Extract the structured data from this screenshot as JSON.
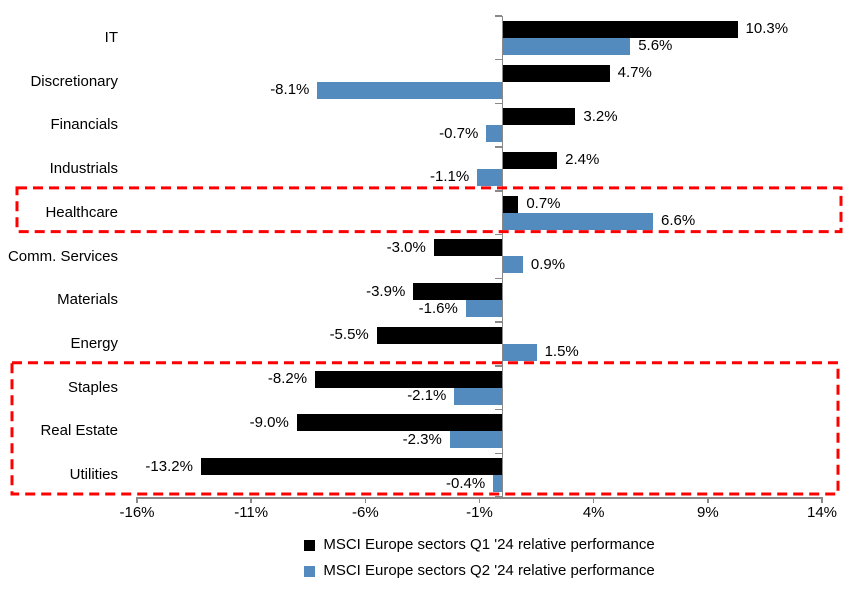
{
  "chart_data": {
    "type": "bar",
    "orientation": "horizontal",
    "title": "",
    "xlabel": "",
    "ylabel": "",
    "categories": [
      "IT",
      "Discretionary",
      "Financials",
      "Industrials",
      "Healthcare",
      "Comm. Services",
      "Materials",
      "Energy",
      "Staples",
      "Real Estate",
      "Utilities"
    ],
    "series": [
      {
        "name": "MSCI Europe sectors Q1 '24 relative performance",
        "color": "#000000",
        "values": [
          10.3,
          4.7,
          3.2,
          2.4,
          0.7,
          -3.0,
          -3.9,
          -5.5,
          -8.2,
          -9.0,
          -13.2
        ]
      },
      {
        "name": "MSCI Europe sectors Q2 '24 relative performance",
        "color": "#548BBE",
        "values": [
          5.6,
          -8.1,
          -0.7,
          -1.1,
          6.6,
          0.9,
          -1.6,
          1.5,
          -2.1,
          -2.3,
          -0.4
        ]
      }
    ],
    "data_labels": {
      "format": "one-decimal-percent",
      "q1_labels": [
        "10.3%",
        "4.7%",
        "3.2%",
        "2.4%",
        "0.7%",
        "-3.0%",
        "-3.9%",
        "-5.5%",
        "-8.2%",
        "-9.0%",
        "-13.2%"
      ],
      "q2_labels": [
        "5.6%",
        "-8.1%",
        "-0.7%",
        "-1.1%",
        "6.6%",
        "0.9%",
        "-1.6%",
        "1.5%",
        "-2.1%",
        "-2.3%",
        "-0.4%"
      ]
    },
    "x_axis": {
      "min": -16,
      "max": 14,
      "tick_values": [
        -16,
        -11,
        -6,
        -1,
        4,
        9,
        14
      ],
      "tick_labels": [
        "-16%",
        "-11%",
        "-6%",
        "-1%",
        "4%",
        "9%",
        "14%"
      ]
    },
    "grid": false,
    "legend_position": "bottom",
    "highlights": [
      {
        "first_category": "Healthcare",
        "last_category": "Healthcare",
        "color": "#FF0000",
        "style": "dashed"
      },
      {
        "first_category": "Staples",
        "last_category": "Utilities",
        "color": "#FF0000",
        "style": "dashed"
      }
    ]
  },
  "colors": {
    "q1_bar": "#000000",
    "q2_bar": "#548BBE",
    "highlight_red": "#FF0000",
    "axis_gray": "#898989",
    "text": "#000000",
    "background": "#FFFFFF"
  },
  "legend": {
    "q1_label": "MSCI Europe sectors Q1 '24 relative performance",
    "q2_label": "MSCI Europe sectors Q2 '24 relative performance"
  }
}
